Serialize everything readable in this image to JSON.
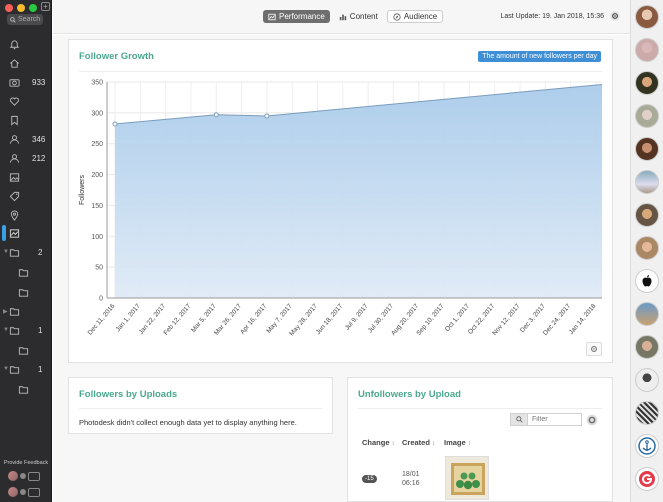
{
  "sidebar": {
    "search_placeholder": "Search",
    "counts": {
      "photos": "933",
      "following": "346",
      "followers": "212"
    },
    "folders": [
      {
        "count": "2"
      },
      {
        "count": ""
      },
      {
        "count": ""
      },
      {
        "count": ""
      },
      {
        "count": "1"
      },
      {
        "count": ""
      },
      {
        "count": "1"
      },
      {
        "count": ""
      }
    ],
    "feedback_label": "Provide Feedback"
  },
  "topbar": {
    "tabs": [
      {
        "label": "Performance",
        "icon": "chart-icon",
        "active": true
      },
      {
        "label": "Content",
        "icon": "bar-chart-icon",
        "active": false
      },
      {
        "label": "Audience",
        "icon": "compass-icon",
        "active": false
      }
    ],
    "last_update": "Last Update: 19. Jan 2018, 15:36"
  },
  "follower_growth": {
    "title": "Follower Growth",
    "legend_label": "The amount of new followers per day",
    "chart_data": {
      "type": "area",
      "title": "Follower Growth",
      "ylabel": "Followers",
      "xlabel": "",
      "ylim": [
        0,
        350
      ],
      "yticks": [
        0,
        50,
        100,
        150,
        200,
        250,
        300,
        350
      ],
      "xticks": [
        "Dec 11, 2016",
        "Jan 1, 2017",
        "Jan 22, 2017",
        "Feb 12, 2017",
        "Mar 5, 2017",
        "Mar 26, 2017",
        "Apr 16, 2017",
        "May 7, 2017",
        "May 28, 2017",
        "Jun 18, 2017",
        "Jul 9, 2017",
        "Jul 30, 2017",
        "Aug 20, 2017",
        "Sep 10, 2017",
        "Oct 1, 2017",
        "Oct 22, 2017",
        "Nov 12, 2017",
        "Dec 3, 2017",
        "Dec 24, 2017",
        "Jan 14, 2018"
      ],
      "points": [
        {
          "x": "Dec 11, 2016",
          "y": 282
        },
        {
          "x": "Mar 5, 2017",
          "y": 297
        },
        {
          "x": "Apr 16, 2017",
          "y": 295
        },
        {
          "x": "Jan 19, 2018",
          "y": 346
        }
      ],
      "marked_points": [
        0,
        1,
        2
      ],
      "grid": true,
      "color": "#a9cbea"
    }
  },
  "followers_by_uploads": {
    "title": "Followers by Uploads",
    "message": "Photodesk didn't collect enough data yet to display anything here."
  },
  "unfollowers_by_upload": {
    "title": "Unfollowers by Upload",
    "filter_placeholder": "Filter",
    "columns": [
      "Change",
      "Created",
      "Image"
    ],
    "rows": [
      {
        "change": "-15",
        "date": "18/01",
        "time": "06:16"
      }
    ]
  }
}
